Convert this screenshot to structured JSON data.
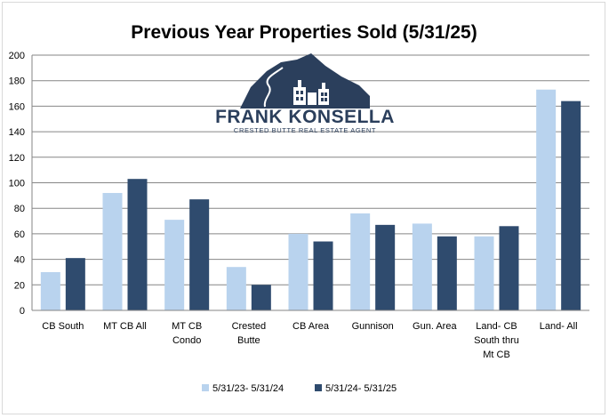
{
  "chart_data": {
    "type": "bar",
    "title": "Previous Year Properties Sold (5/31/25)",
    "categories": [
      [
        "CB South"
      ],
      [
        "MT CB All"
      ],
      [
        "MT CB",
        "Condo"
      ],
      [
        "Crested",
        "Butte"
      ],
      [
        "CB Area"
      ],
      [
        "Gunnison"
      ],
      [
        "Gun. Area"
      ],
      [
        "Land- CB",
        "South thru",
        "Mt CB"
      ],
      [
        "Land- All"
      ]
    ],
    "series": [
      {
        "name": "5/31/23- 5/31/24",
        "color": "#b9d3ee",
        "values": [
          30,
          92,
          71,
          34,
          60,
          76,
          68,
          58,
          173
        ]
      },
      {
        "name": "5/31/24- 5/31/25",
        "color": "#2f4b6e",
        "values": [
          41,
          103,
          87,
          20,
          54,
          67,
          58,
          66,
          164
        ]
      }
    ],
    "ylim": [
      0,
      200
    ],
    "yticks": [
      0,
      20,
      40,
      60,
      80,
      100,
      120,
      140,
      160,
      180,
      200
    ],
    "grid": true,
    "legend": "bottom"
  },
  "logo": {
    "name": "FRANK KONSELLA",
    "tagline": "CRESTED BUTTE REAL ESTATE AGENT",
    "color": "#2b3f5c"
  }
}
